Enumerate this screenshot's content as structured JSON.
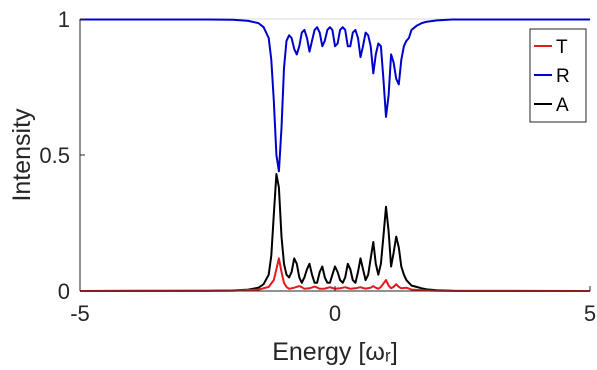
{
  "chart_data": {
    "type": "line",
    "title": "",
    "xlabel": "Energy [ωᵣ]",
    "ylabel": "Intensity",
    "xlim": [
      -5,
      5
    ],
    "ylim": [
      0,
      1
    ],
    "xticks": [
      "-5",
      "0",
      "5"
    ],
    "yticks": [
      "0",
      "0.5",
      "1"
    ],
    "grid": false,
    "legend_position": "top-right",
    "series": [
      {
        "name": "T",
        "color": "#e41a1c",
        "x": [
          -5,
          -2,
          -1.5,
          -1.3,
          -1.2,
          -1.15,
          -1.1,
          -1.05,
          -1.0,
          -0.95,
          -0.9,
          -0.8,
          -0.7,
          -0.65,
          -0.6,
          -0.5,
          -0.4,
          -0.35,
          -0.3,
          -0.2,
          -0.1,
          -0.05,
          0,
          0.1,
          0.2,
          0.25,
          0.3,
          0.4,
          0.5,
          0.55,
          0.6,
          0.7,
          0.75,
          0.8,
          0.85,
          0.9,
          1.0,
          1.05,
          1.1,
          1.15,
          1.2,
          1.25,
          1.3,
          1.4,
          1.5,
          1.6,
          1.8,
          2.0,
          2.5,
          5
        ],
        "y": [
          0,
          0.001,
          0.005,
          0.015,
          0.04,
          0.08,
          0.12,
          0.07,
          0.03,
          0.015,
          0.008,
          0.012,
          0.018,
          0.014,
          0.008,
          0.01,
          0.016,
          0.013,
          0.008,
          0.009,
          0.014,
          0.011,
          0.008,
          0.01,
          0.014,
          0.011,
          0.008,
          0.01,
          0.014,
          0.011,
          0.009,
          0.012,
          0.018,
          0.012,
          0.008,
          0.015,
          0.04,
          0.02,
          0.01,
          0.015,
          0.025,
          0.015,
          0.01,
          0.012,
          0.005,
          0.004,
          0.002,
          0.001,
          0,
          0
        ]
      },
      {
        "name": "R",
        "color": "#0000cc",
        "x": [
          -5,
          -2.5,
          -2,
          -1.7,
          -1.5,
          -1.4,
          -1.3,
          -1.25,
          -1.2,
          -1.15,
          -1.1,
          -1.05,
          -1.0,
          -0.95,
          -0.9,
          -0.85,
          -0.8,
          -0.75,
          -0.7,
          -0.65,
          -0.6,
          -0.55,
          -0.5,
          -0.45,
          -0.4,
          -0.35,
          -0.3,
          -0.25,
          -0.2,
          -0.15,
          -0.1,
          -0.05,
          0,
          0.05,
          0.1,
          0.15,
          0.2,
          0.25,
          0.3,
          0.35,
          0.4,
          0.45,
          0.5,
          0.55,
          0.6,
          0.65,
          0.7,
          0.75,
          0.8,
          0.85,
          0.9,
          0.95,
          1.0,
          1.05,
          1.1,
          1.15,
          1.2,
          1.25,
          1.3,
          1.35,
          1.4,
          1.45,
          1.5,
          1.6,
          1.7,
          1.8,
          2.0,
          2.3,
          5
        ],
        "y": [
          0.998,
          0.998,
          0.997,
          0.993,
          0.985,
          0.97,
          0.93,
          0.85,
          0.7,
          0.5,
          0.44,
          0.6,
          0.82,
          0.92,
          0.94,
          0.93,
          0.89,
          0.87,
          0.9,
          0.95,
          0.96,
          0.93,
          0.88,
          0.92,
          0.96,
          0.97,
          0.95,
          0.9,
          0.92,
          0.96,
          0.97,
          0.96,
          0.9,
          0.91,
          0.96,
          0.97,
          0.96,
          0.9,
          0.9,
          0.95,
          0.96,
          0.93,
          0.86,
          0.9,
          0.95,
          0.94,
          0.9,
          0.8,
          0.87,
          0.91,
          0.9,
          0.78,
          0.64,
          0.72,
          0.87,
          0.84,
          0.78,
          0.76,
          0.85,
          0.9,
          0.92,
          0.93,
          0.96,
          0.975,
          0.985,
          0.99,
          0.995,
          0.998,
          0.998
        ]
      },
      {
        "name": "A",
        "color": "#000000",
        "x": [
          -5,
          -2.5,
          -2,
          -1.7,
          -1.5,
          -1.4,
          -1.3,
          -1.25,
          -1.2,
          -1.15,
          -1.1,
          -1.05,
          -1.0,
          -0.95,
          -0.9,
          -0.85,
          -0.8,
          -0.75,
          -0.7,
          -0.65,
          -0.6,
          -0.55,
          -0.5,
          -0.45,
          -0.4,
          -0.35,
          -0.3,
          -0.25,
          -0.2,
          -0.15,
          -0.1,
          -0.05,
          0,
          0.05,
          0.1,
          0.15,
          0.2,
          0.25,
          0.3,
          0.35,
          0.4,
          0.45,
          0.5,
          0.55,
          0.6,
          0.65,
          0.7,
          0.75,
          0.8,
          0.85,
          0.9,
          0.95,
          1.0,
          1.05,
          1.1,
          1.15,
          1.2,
          1.25,
          1.3,
          1.35,
          1.4,
          1.45,
          1.5,
          1.6,
          1.7,
          1.8,
          2.0,
          2.3,
          5
        ],
        "y": [
          0,
          0.001,
          0.002,
          0.005,
          0.012,
          0.025,
          0.06,
          0.13,
          0.28,
          0.43,
          0.38,
          0.2,
          0.1,
          0.06,
          0.05,
          0.07,
          0.12,
          0.1,
          0.05,
          0.03,
          0.05,
          0.08,
          0.1,
          0.06,
          0.03,
          0.03,
          0.07,
          0.09,
          0.05,
          0.03,
          0.03,
          0.06,
          0.09,
          0.07,
          0.04,
          0.03,
          0.05,
          0.1,
          0.08,
          0.04,
          0.03,
          0.07,
          0.12,
          0.08,
          0.04,
          0.06,
          0.12,
          0.18,
          0.1,
          0.06,
          0.1,
          0.2,
          0.31,
          0.22,
          0.09,
          0.14,
          0.2,
          0.16,
          0.09,
          0.06,
          0.04,
          0.03,
          0.02,
          0.015,
          0.01,
          0.006,
          0.003,
          0.001,
          0
        ]
      }
    ]
  }
}
